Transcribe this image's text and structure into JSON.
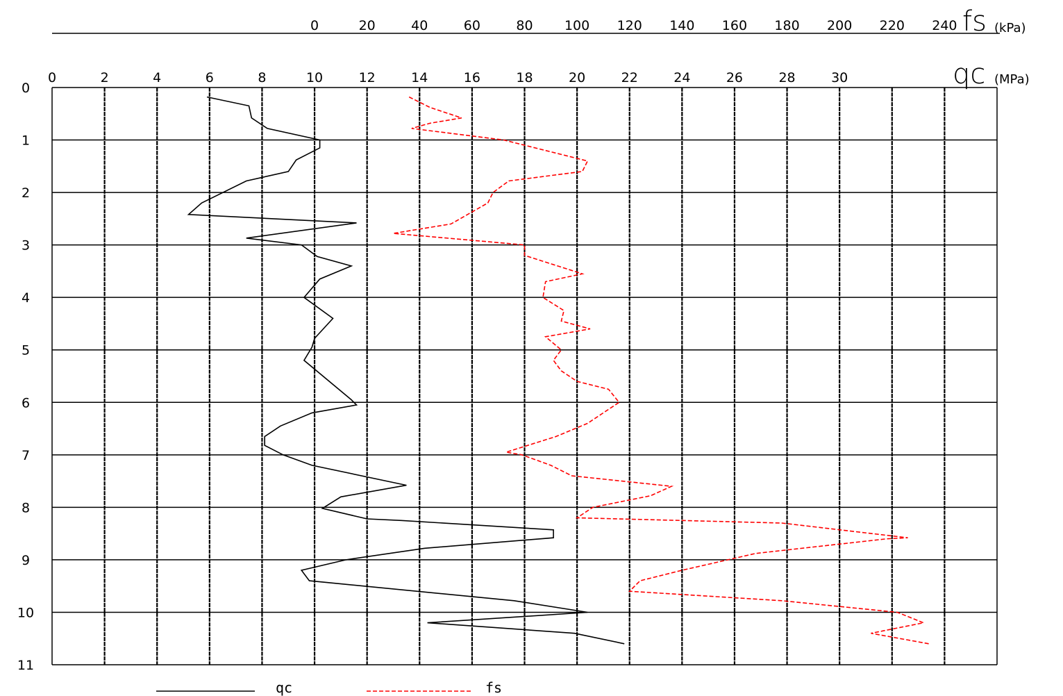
{
  "chart_data": {
    "type": "line",
    "orientation": "depth-down",
    "y_axis": {
      "min": 0,
      "max": 11,
      "ticks": [
        "0",
        "1",
        "2",
        "3",
        "4",
        "5",
        "6",
        "7",
        "8",
        "9",
        "10",
        "11"
      ]
    },
    "qc_axis": {
      "symbol": "qc",
      "unit": "(MPa)",
      "min": 0,
      "max": 36,
      "ticks": [
        "0",
        "2",
        "4",
        "6",
        "8",
        "10",
        "12",
        "14",
        "16",
        "18",
        "20",
        "22",
        "24",
        "26",
        "28",
        "30"
      ]
    },
    "fs_axis": {
      "symbol": "fs",
      "unit": "(kPa)",
      "min": -100,
      "max": 260,
      "ticks": [
        "0",
        "20",
        "40",
        "60",
        "80",
        "100",
        "120",
        "140",
        "160",
        "180",
        "200",
        "220",
        "240"
      ]
    },
    "grid": true,
    "legend": {
      "placement": "bottom"
    },
    "series": [
      {
        "name": "qc",
        "color": "#000000",
        "style": "solid",
        "axis": "qc",
        "points": [
          [
            5.9,
            0.18
          ],
          [
            7.5,
            0.35
          ],
          [
            7.6,
            0.58
          ],
          [
            8.2,
            0.78
          ],
          [
            10.2,
            1.0
          ],
          [
            10.2,
            1.15
          ],
          [
            9.3,
            1.38
          ],
          [
            9.0,
            1.6
          ],
          [
            7.4,
            1.78
          ],
          [
            5.7,
            2.2
          ],
          [
            5.2,
            2.42
          ],
          [
            11.6,
            2.58
          ],
          [
            7.4,
            2.87
          ],
          [
            9.5,
            3.0
          ],
          [
            10.1,
            3.22
          ],
          [
            11.4,
            3.4
          ],
          [
            10.2,
            3.65
          ],
          [
            9.6,
            4.0
          ],
          [
            10.7,
            4.4
          ],
          [
            10.0,
            4.78
          ],
          [
            9.9,
            4.95
          ],
          [
            9.6,
            5.2
          ],
          [
            11.4,
            5.95
          ],
          [
            11.6,
            6.05
          ],
          [
            9.9,
            6.2
          ],
          [
            8.7,
            6.45
          ],
          [
            8.1,
            6.65
          ],
          [
            8.1,
            6.82
          ],
          [
            8.8,
            7.0
          ],
          [
            9.9,
            7.2
          ],
          [
            13.5,
            7.58
          ],
          [
            11.0,
            7.8
          ],
          [
            10.3,
            8.02
          ],
          [
            12.0,
            8.22
          ],
          [
            13.3,
            8.25
          ],
          [
            19.1,
            8.43
          ],
          [
            19.1,
            8.58
          ],
          [
            14.2,
            8.78
          ],
          [
            11.2,
            9.0
          ],
          [
            9.5,
            9.2
          ],
          [
            9.8,
            9.4
          ],
          [
            17.6,
            9.78
          ],
          [
            20.4,
            10.0
          ],
          [
            14.3,
            10.2
          ],
          [
            19.9,
            10.4
          ],
          [
            21.8,
            10.6
          ]
        ]
      },
      {
        "name": "fs",
        "color": "#ff0000",
        "style": "dashed",
        "axis": "fs",
        "points": [
          [
            36,
            0.18
          ],
          [
            44,
            0.38
          ],
          [
            56,
            0.58
          ],
          [
            44,
            0.68
          ],
          [
            37,
            0.78
          ],
          [
            72,
            1.0
          ],
          [
            104,
            1.4
          ],
          [
            102,
            1.6
          ],
          [
            74,
            1.78
          ],
          [
            68,
            2.0
          ],
          [
            66,
            2.2
          ],
          [
            52,
            2.6
          ],
          [
            30,
            2.78
          ],
          [
            80,
            3.0
          ],
          [
            80,
            3.2
          ],
          [
            102,
            3.55
          ],
          [
            88,
            3.7
          ],
          [
            87,
            4.0
          ],
          [
            95,
            4.25
          ],
          [
            94,
            4.45
          ],
          [
            105,
            4.6
          ],
          [
            88,
            4.75
          ],
          [
            94,
            5.0
          ],
          [
            91,
            5.2
          ],
          [
            94,
            5.4
          ],
          [
            100,
            5.6
          ],
          [
            112,
            5.75
          ],
          [
            116,
            6.0
          ],
          [
            104,
            6.4
          ],
          [
            92,
            6.65
          ],
          [
            73,
            6.95
          ],
          [
            79,
            7.0
          ],
          [
            90,
            7.2
          ],
          [
            98,
            7.4
          ],
          [
            136,
            7.6
          ],
          [
            128,
            7.78
          ],
          [
            106,
            8.0
          ],
          [
            100,
            8.2
          ],
          [
            178,
            8.3
          ],
          [
            226,
            8.58
          ],
          [
            218,
            8.6
          ],
          [
            168,
            8.88
          ],
          [
            140,
            9.2
          ],
          [
            124,
            9.4
          ],
          [
            120,
            9.6
          ],
          [
            178,
            9.78
          ],
          [
            222,
            10.0
          ],
          [
            232,
            10.2
          ],
          [
            212,
            10.4
          ],
          [
            234,
            10.6
          ]
        ]
      }
    ]
  }
}
